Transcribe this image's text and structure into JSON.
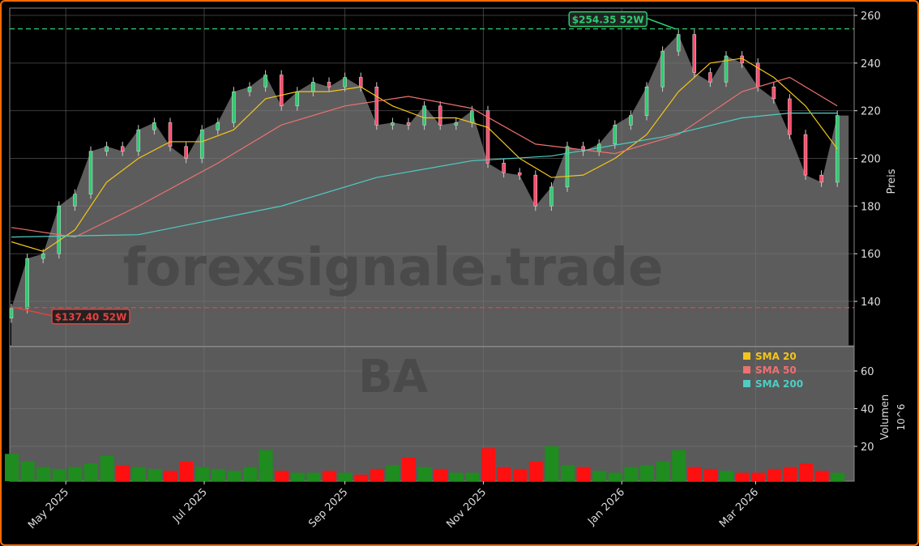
{
  "chart_data": [
    {
      "type": "line",
      "ticker": "BA",
      "watermark": "forexsignale.trade",
      "ylabel": "Preis",
      "ylim": [
        128,
        262
      ],
      "yticks": [
        140,
        160,
        180,
        200,
        220,
        240,
        260
      ],
      "xticks": [
        {
          "date": "2025-05-01",
          "label": "May 2025"
        },
        {
          "date": "2025-07-01",
          "label": "Jul 2025"
        },
        {
          "date": "2025-09-01",
          "label": "Sep 2025"
        },
        {
          "date": "2025-11-01",
          "label": "Nov 2025"
        },
        {
          "date": "2026-01-01",
          "label": "Jan 2026"
        },
        {
          "date": "2026-03-01",
          "label": "Mar 2026"
        }
      ],
      "grid": true,
      "close": [
        [
          "2025-04-07",
          137
        ],
        [
          "2025-04-14",
          158
        ],
        [
          "2025-04-21",
          160
        ],
        [
          "2025-04-28",
          180
        ],
        [
          "2025-05-05",
          185
        ],
        [
          "2025-05-12",
          203
        ],
        [
          "2025-05-19",
          205
        ],
        [
          "2025-05-26",
          203
        ],
        [
          "2025-06-02",
          212
        ],
        [
          "2025-06-09",
          215
        ],
        [
          "2025-06-16",
          205
        ],
        [
          "2025-06-23",
          200
        ],
        [
          "2025-06-30",
          212
        ],
        [
          "2025-07-07",
          215
        ],
        [
          "2025-07-14",
          228
        ],
        [
          "2025-07-21",
          230
        ],
        [
          "2025-07-28",
          235
        ],
        [
          "2025-08-04",
          222
        ],
        [
          "2025-08-11",
          228
        ],
        [
          "2025-08-18",
          232
        ],
        [
          "2025-08-25",
          230
        ],
        [
          "2025-09-01",
          234
        ],
        [
          "2025-09-08",
          230
        ],
        [
          "2025-09-15",
          214
        ],
        [
          "2025-09-22",
          215
        ],
        [
          "2025-09-29",
          214
        ],
        [
          "2025-10-06",
          222
        ],
        [
          "2025-10-13",
          214
        ],
        [
          "2025-10-20",
          215
        ],
        [
          "2025-10-27",
          220
        ],
        [
          "2025-11-03",
          198
        ],
        [
          "2025-11-10",
          194
        ],
        [
          "2025-11-17",
          193
        ],
        [
          "2025-11-24",
          180
        ],
        [
          "2025-12-01",
          188
        ],
        [
          "2025-12-08",
          205
        ],
        [
          "2025-12-15",
          203
        ],
        [
          "2025-12-22",
          206
        ],
        [
          "2025-12-29",
          214
        ],
        [
          "2026-01-05",
          218
        ],
        [
          "2026-01-12",
          230
        ],
        [
          "2026-01-19",
          245
        ],
        [
          "2026-01-26",
          252
        ],
        [
          "2026-02-02",
          236
        ],
        [
          "2026-02-09",
          232
        ],
        [
          "2026-02-16",
          243
        ],
        [
          "2026-02-23",
          240
        ],
        [
          "2026-03-02",
          230
        ],
        [
          "2026-03-09",
          225
        ],
        [
          "2026-03-16",
          210
        ],
        [
          "2026-03-23",
          193
        ],
        [
          "2026-03-30",
          190
        ],
        [
          "2026-04-06",
          218
        ]
      ],
      "series": [
        {
          "name": "SMA 20",
          "color": "#f5c518",
          "points": [
            [
              "2025-04-07",
              165
            ],
            [
              "2025-04-21",
              161
            ],
            [
              "2025-05-05",
              170
            ],
            [
              "2025-05-19",
              190
            ],
            [
              "2025-06-02",
              200
            ],
            [
              "2025-06-16",
              207
            ],
            [
              "2025-06-30",
              207
            ],
            [
              "2025-07-14",
              212
            ],
            [
              "2025-07-28",
              225
            ],
            [
              "2025-08-11",
              228
            ],
            [
              "2025-08-25",
              228
            ],
            [
              "2025-09-08",
              230
            ],
            [
              "2025-09-22",
              222
            ],
            [
              "2025-10-06",
              217
            ],
            [
              "2025-10-20",
              217
            ],
            [
              "2025-11-03",
              213
            ],
            [
              "2025-11-17",
              200
            ],
            [
              "2025-12-01",
              192
            ],
            [
              "2025-12-15",
              193
            ],
            [
              "2025-12-29",
              200
            ],
            [
              "2026-01-12",
              210
            ],
            [
              "2026-01-26",
              228
            ],
            [
              "2026-02-09",
              240
            ],
            [
              "2026-02-23",
              242
            ],
            [
              "2026-03-09",
              234
            ],
            [
              "2026-03-23",
              222
            ],
            [
              "2026-04-06",
              204
            ]
          ]
        },
        {
          "name": "SMA 50",
          "color": "#f07070",
          "points": [
            [
              "2025-04-07",
              171
            ],
            [
              "2025-05-05",
              167
            ],
            [
              "2025-06-02",
              180
            ],
            [
              "2025-07-07",
              198
            ],
            [
              "2025-08-04",
              214
            ],
            [
              "2025-09-01",
              222
            ],
            [
              "2025-09-29",
              226
            ],
            [
              "2025-10-27",
              221
            ],
            [
              "2025-11-24",
              206
            ],
            [
              "2025-12-29",
              202
            ],
            [
              "2026-01-26",
              210
            ],
            [
              "2026-02-23",
              228
            ],
            [
              "2026-03-16",
              234
            ],
            [
              "2026-04-06",
              222
            ]
          ]
        },
        {
          "name": "SMA 200",
          "color": "#4ecdc4",
          "points": [
            [
              "2025-04-07",
              167
            ],
            [
              "2025-06-02",
              168
            ],
            [
              "2025-08-04",
              180
            ],
            [
              "2025-09-15",
              192
            ],
            [
              "2025-10-27",
              199
            ],
            [
              "2025-12-01",
              201
            ],
            [
              "2026-01-19",
              209
            ],
            [
              "2026-02-23",
              217
            ],
            [
              "2026-03-16",
              219
            ],
            [
              "2026-04-06",
              219
            ]
          ]
        }
      ],
      "annotations": [
        {
          "label": "$254.35 52W",
          "value": 254.35,
          "date": "2026-01-26",
          "color": "#2ecc71"
        },
        {
          "label": "$137.40 52W",
          "value": 137.4,
          "date": "2025-04-07",
          "color": "#e84040"
        }
      ],
      "legend_placement": "top-right of volume panel"
    },
    {
      "type": "bar",
      "ylabel": "Volumen",
      "yunit": "10^6",
      "ylim": [
        0,
        72
      ],
      "yticks": [
        20,
        40,
        60
      ],
      "up_color": "#1e8c1e",
      "down_color": "#ff1010",
      "volume": [
        16,
        12,
        9,
        8,
        9,
        11,
        15,
        10,
        9,
        8,
        7,
        12,
        9,
        8,
        7,
        9,
        18,
        7,
        6,
        6,
        7,
        6,
        5,
        8,
        10,
        14,
        9,
        8,
        6,
        6,
        19,
        9,
        8,
        12,
        20,
        10,
        9,
        7,
        6,
        9,
        10,
        12,
        18,
        9,
        8,
        7,
        6,
        6,
        8,
        9,
        11,
        7,
        6
      ]
    }
  ]
}
